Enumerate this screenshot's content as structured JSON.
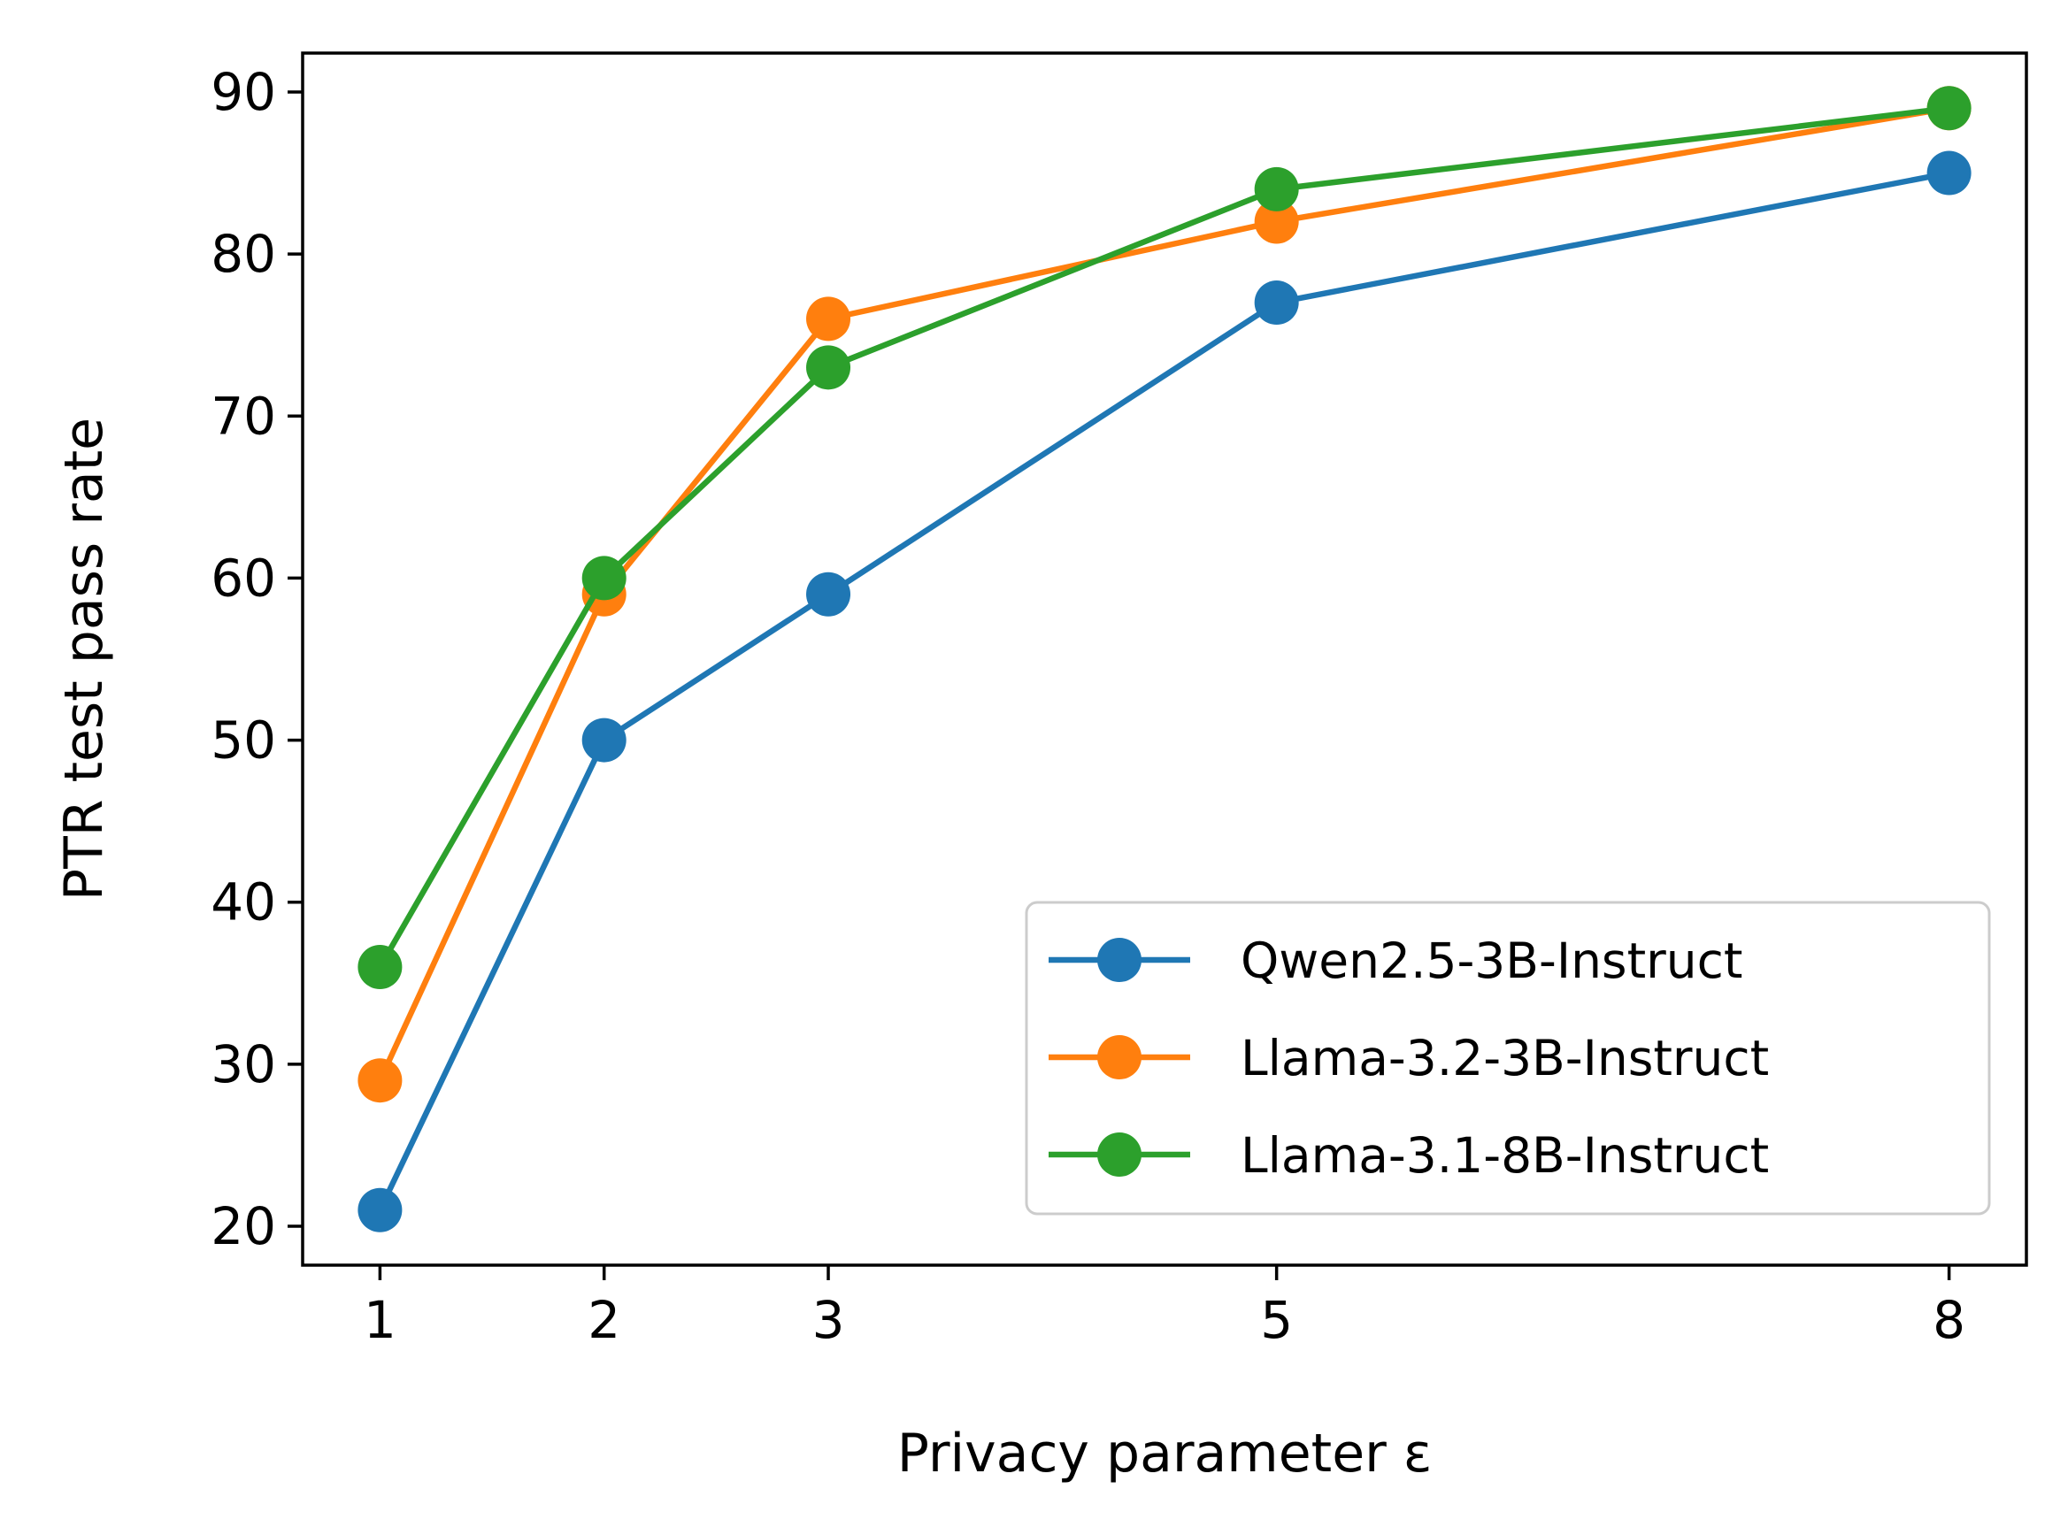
{
  "chart_data": {
    "type": "line",
    "title": "",
    "xlabel": "Privacy parameter ε",
    "ylabel": "PTR test pass rate",
    "x": [
      1,
      2,
      3,
      5,
      8
    ],
    "x_ticks": [
      1,
      2,
      3,
      5,
      8
    ],
    "y_ticks": [
      20,
      30,
      40,
      50,
      60,
      70,
      80,
      90
    ],
    "xlim": [
      0.655,
      8.345
    ],
    "ylim": [
      17.6,
      92.4
    ],
    "grid": false,
    "legend_position": "lower-right",
    "series": [
      {
        "name": "Qwen2.5-3B-Instruct",
        "color": "#1f77b4",
        "marker": "circle",
        "values": [
          21,
          50,
          59,
          77,
          85
        ]
      },
      {
        "name": "Llama-3.2-3B-Instruct",
        "color": "#ff7f0e",
        "marker": "circle",
        "values": [
          29,
          59,
          76,
          82,
          89
        ]
      },
      {
        "name": "Llama-3.1-8B-Instruct",
        "color": "#2ca02c",
        "marker": "circle",
        "values": [
          36,
          60,
          73,
          84,
          89
        ]
      }
    ]
  }
}
